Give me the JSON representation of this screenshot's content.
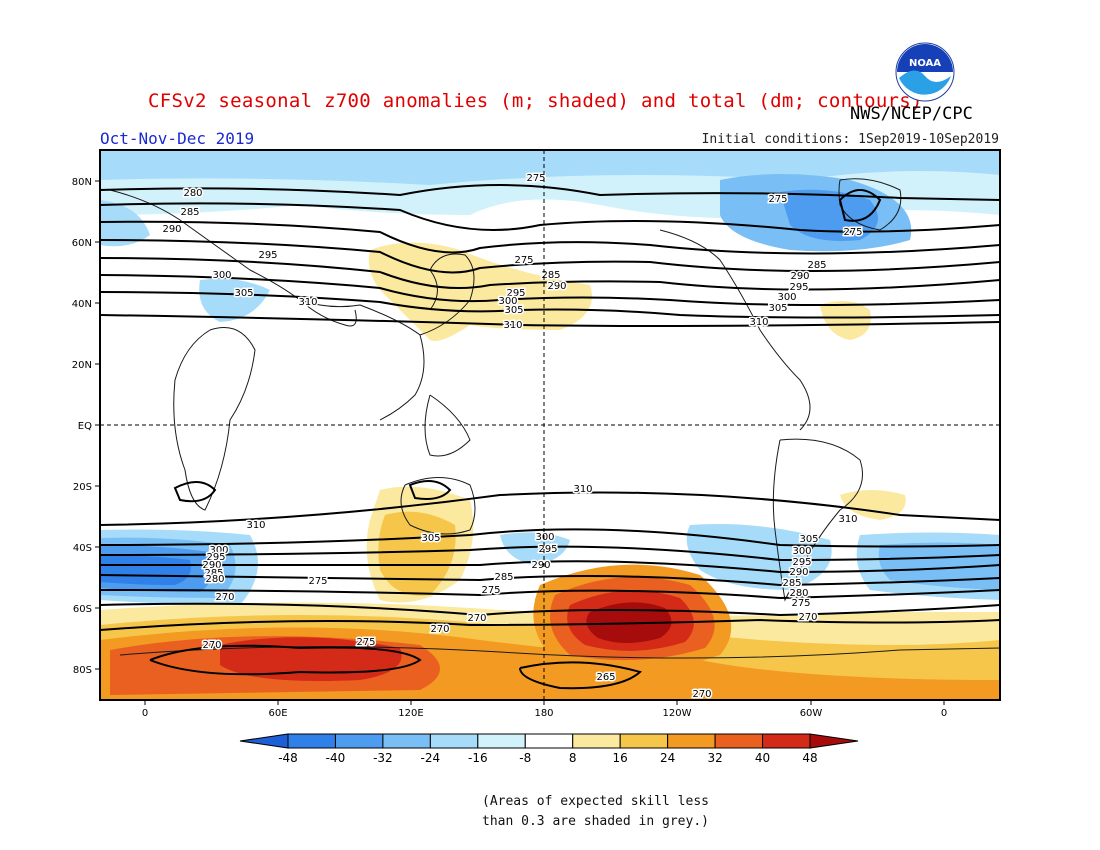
{
  "header": {
    "title": "CFSv2 seasonal z700 anomalies (m; shaded) and total (dm; contours)",
    "org": "NWS/NCEP/CPC",
    "period": "Oct-Nov-Dec 2019",
    "initial_conditions": "Initial conditions: 1Sep2019-10Sep2019",
    "logo_text": "NOAA"
  },
  "axes": {
    "lat_labels": [
      "80N",
      "60N",
      "40N",
      "20N",
      "EQ",
      "20S",
      "40S",
      "60S",
      "80S"
    ],
    "lon_labels": [
      "0",
      "60E",
      "120E",
      "180",
      "120W",
      "60W",
      "0"
    ]
  },
  "contour_labels": [
    "280",
    "285",
    "290",
    "295",
    "300",
    "305",
    "310",
    "275",
    "270",
    "265"
  ],
  "colorbar": {
    "ticks": [
      "-48",
      "-40",
      "-32",
      "-24",
      "-16",
      "-8",
      "8",
      "16",
      "24",
      "32",
      "40",
      "48"
    ],
    "colors": [
      "#1c5fd6",
      "#2f80e8",
      "#4d9cf0",
      "#79bff6",
      "#a6dcf9",
      "#d1f1fb",
      "#ffffff",
      "#fbe9a0",
      "#f6c64a",
      "#f39a22",
      "#ea6020",
      "#d42a18",
      "#a60c0c"
    ]
  },
  "footnote": {
    "line1": "(Areas of expected skill less",
    "line2": "than 0.3 are shaded in grey.)"
  }
}
